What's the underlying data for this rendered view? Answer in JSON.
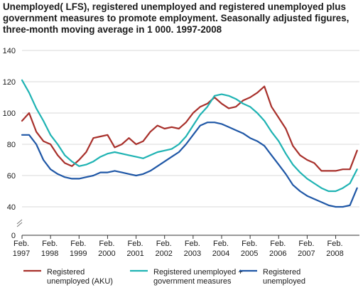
{
  "chart_data": {
    "type": "line",
    "title": "Unemployed( LFS), registered unemployed and registered unemployed plus government measures to promote employment. Seasonally adjusted figures, three-month moving average in 1 000. 1997-2008",
    "xlabel": "",
    "ylabel": "",
    "ylim": [
      0,
      140
    ],
    "yticks": [
      0,
      40,
      60,
      80,
      100,
      120,
      140
    ],
    "y_axis_break": true,
    "grid": true,
    "legend_position": "bottom",
    "x_tick_labels": [
      {
        "line1": "Feb.",
        "line2": "1997"
      },
      {
        "line1": "Feb.",
        "line2": "1998"
      },
      {
        "line1": "Feb.",
        "line2": "1999"
      },
      {
        "line1": "Feb.",
        "line2": "2000"
      },
      {
        "line1": "Feb.",
        "line2": "2001"
      },
      {
        "line1": "Feb.",
        "line2": "2002"
      },
      {
        "line1": "Feb.",
        "line2": "2003"
      },
      {
        "line1": "Feb.",
        "line2": "2004"
      },
      {
        "line1": "Feb.",
        "line2": "2005"
      },
      {
        "line1": "Feb.",
        "line2": "2006"
      },
      {
        "line1": "Feb.",
        "line2": "2007"
      },
      {
        "line1": "Feb.",
        "line2": "2008"
      }
    ],
    "series": [
      {
        "name": "Registered unemployed (AKU)",
        "legend_lines": [
          "Registered",
          "unemployed (AKU)"
        ],
        "color": "#a8302b",
        "x": [
          "1997-02",
          "1997-05",
          "1997-08",
          "1997-11",
          "1998-02",
          "1998-05",
          "1998-08",
          "1998-11",
          "1999-02",
          "1999-05",
          "1999-08",
          "1999-11",
          "2000-02",
          "2000-05",
          "2000-08",
          "2000-11",
          "2001-02",
          "2001-05",
          "2001-08",
          "2001-11",
          "2002-02",
          "2002-05",
          "2002-08",
          "2002-11",
          "2003-02",
          "2003-05",
          "2003-08",
          "2003-11",
          "2004-02",
          "2004-05",
          "2004-08",
          "2004-11",
          "2005-02",
          "2005-05",
          "2005-08",
          "2005-11",
          "2006-02",
          "2006-05",
          "2006-08",
          "2006-11",
          "2007-02",
          "2007-05",
          "2007-08",
          "2007-11",
          "2008-02",
          "2008-05",
          "2008-08",
          "2008-11"
        ],
        "values": [
          95,
          100,
          88,
          82,
          80,
          73,
          68,
          66,
          70,
          75,
          84,
          85,
          86,
          78,
          80,
          84,
          80,
          82,
          88,
          92,
          90,
          91,
          90,
          94,
          100,
          104,
          106,
          110,
          106,
          103,
          104,
          108,
          110,
          113,
          117,
          104,
          97,
          90,
          79,
          73,
          70,
          68,
          63,
          63,
          63,
          64,
          64,
          76
        ]
      },
      {
        "name": "Registered unemployed + government measures",
        "legend_lines": [
          "Registered unemployed +",
          "government measures"
        ],
        "color": "#1fb3b3",
        "x": [
          "1997-02",
          "1997-05",
          "1997-08",
          "1997-11",
          "1998-02",
          "1998-05",
          "1998-08",
          "1998-11",
          "1999-02",
          "1999-05",
          "1999-08",
          "1999-11",
          "2000-02",
          "2000-05",
          "2000-08",
          "2000-11",
          "2001-02",
          "2001-05",
          "2001-08",
          "2001-11",
          "2002-02",
          "2002-05",
          "2002-08",
          "2002-11",
          "2003-02",
          "2003-05",
          "2003-08",
          "2003-11",
          "2004-02",
          "2004-05",
          "2004-08",
          "2004-11",
          "2005-02",
          "2005-05",
          "2005-08",
          "2005-11",
          "2006-02",
          "2006-05",
          "2006-08",
          "2006-11",
          "2007-02",
          "2007-05",
          "2007-08",
          "2007-11",
          "2008-02",
          "2008-05",
          "2008-08",
          "2008-11"
        ],
        "values": [
          121,
          113,
          103,
          95,
          86,
          80,
          73,
          69,
          66,
          67,
          69,
          72,
          74,
          75,
          74,
          73,
          72,
          71,
          73,
          75,
          76,
          77,
          80,
          85,
          92,
          99,
          104,
          111,
          112,
          111,
          109,
          106,
          104,
          100,
          95,
          88,
          82,
          74,
          67,
          62,
          58,
          55,
          52,
          50,
          50,
          52,
          55,
          64
        ]
      },
      {
        "name": "Registered unemployed",
        "legend_lines": [
          "Registered",
          "unemployed"
        ],
        "color": "#1f57a6",
        "x": [
          "1997-02",
          "1997-05",
          "1997-08",
          "1997-11",
          "1998-02",
          "1998-05",
          "1998-08",
          "1998-11",
          "1999-02",
          "1999-05",
          "1999-08",
          "1999-11",
          "2000-02",
          "2000-05",
          "2000-08",
          "2000-11",
          "2001-02",
          "2001-05",
          "2001-08",
          "2001-11",
          "2002-02",
          "2002-05",
          "2002-08",
          "2002-11",
          "2003-02",
          "2003-05",
          "2003-08",
          "2003-11",
          "2004-02",
          "2004-05",
          "2004-08",
          "2004-11",
          "2005-02",
          "2005-05",
          "2005-08",
          "2005-11",
          "2006-02",
          "2006-05",
          "2006-08",
          "2006-11",
          "2007-02",
          "2007-05",
          "2007-08",
          "2007-11",
          "2008-02",
          "2008-05",
          "2008-08",
          "2008-11"
        ],
        "values": [
          86,
          86,
          80,
          70,
          64,
          61,
          59,
          58,
          58,
          59,
          60,
          62,
          62,
          63,
          62,
          61,
          60,
          61,
          63,
          66,
          69,
          72,
          75,
          80,
          86,
          92,
          94,
          94,
          93,
          91,
          89,
          87,
          84,
          82,
          79,
          73,
          67,
          61,
          54,
          50,
          47,
          45,
          43,
          41,
          40,
          40,
          41,
          52
        ]
      }
    ]
  }
}
